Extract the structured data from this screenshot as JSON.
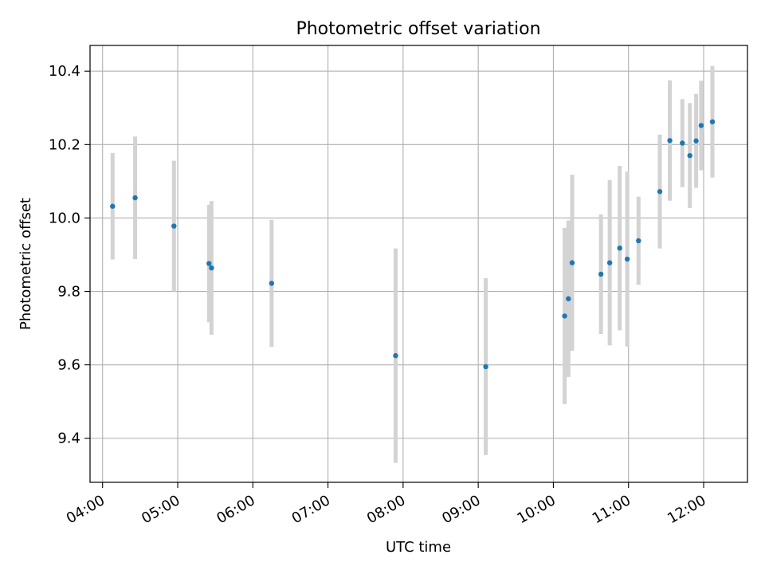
{
  "chart_data": {
    "type": "scatter",
    "title": "Photometric offset variation",
    "xlabel": "UTC time",
    "ylabel": "Photometric offset",
    "x_unit": "UTC hh:mm",
    "xlim": [
      "03:50",
      "12:35"
    ],
    "ylim": [
      9.28,
      10.47
    ],
    "grid": true,
    "x_ticks": [
      "04:00",
      "05:00",
      "06:00",
      "07:00",
      "08:00",
      "09:00",
      "10:00",
      "11:00",
      "12:00"
    ],
    "y_ticks": [
      9.4,
      9.6,
      9.8,
      10.0,
      10.2,
      10.4
    ],
    "y_tick_labels": [
      "9.4",
      "9.6",
      "9.8",
      "10.0",
      "10.2",
      "10.4"
    ],
    "marker_color": "#1f77b4",
    "errorbar_color": "#d3d3d3",
    "points": [
      {
        "x": "04:08",
        "y": 10.032,
        "err": 0.145
      },
      {
        "x": "04:26",
        "y": 10.055,
        "err": 0.167
      },
      {
        "x": "04:57",
        "y": 9.978,
        "err": 0.178
      },
      {
        "x": "05:25",
        "y": 9.876,
        "err": 0.16
      },
      {
        "x": "05:27",
        "y": 9.864,
        "err": 0.182
      },
      {
        "x": "06:15",
        "y": 9.822,
        "err": 0.173
      },
      {
        "x": "07:54",
        "y": 9.625,
        "err": 0.292
      },
      {
        "x": "09:06",
        "y": 9.595,
        "err": 0.241
      },
      {
        "x": "10:09",
        "y": 9.733,
        "err": 0.24
      },
      {
        "x": "10:12",
        "y": 9.78,
        "err": 0.213
      },
      {
        "x": "10:15",
        "y": 9.878,
        "err": 0.24
      },
      {
        "x": "10:38",
        "y": 9.847,
        "err": 0.163
      },
      {
        "x": "10:45",
        "y": 9.878,
        "err": 0.225
      },
      {
        "x": "10:53",
        "y": 9.918,
        "err": 0.224
      },
      {
        "x": "10:59",
        "y": 9.888,
        "err": 0.238
      },
      {
        "x": "11:08",
        "y": 9.938,
        "err": 0.12
      },
      {
        "x": "11:25",
        "y": 10.072,
        "err": 0.155
      },
      {
        "x": "11:33",
        "y": 10.211,
        "err": 0.164
      },
      {
        "x": "11:43",
        "y": 10.204,
        "err": 0.12
      },
      {
        "x": "11:49",
        "y": 10.17,
        "err": 0.143
      },
      {
        "x": "11:54",
        "y": 10.21,
        "err": 0.128
      },
      {
        "x": "11:58",
        "y": 10.252,
        "err": 0.122
      },
      {
        "x": "12:07",
        "y": 10.262,
        "err": 0.152
      }
    ]
  }
}
